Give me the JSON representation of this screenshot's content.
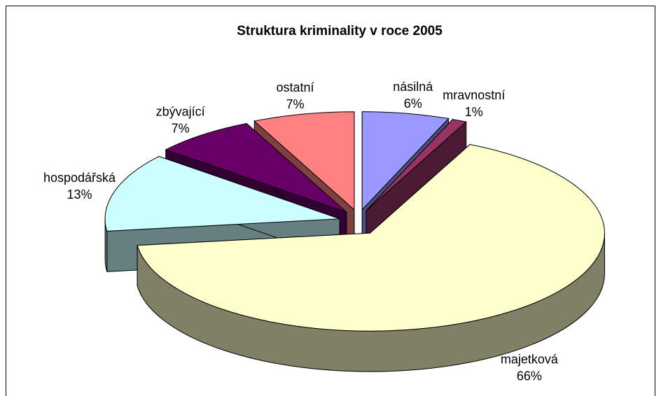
{
  "chart_data": {
    "type": "pie3d",
    "title": "Struktura kriminality v roce 2005",
    "categories": [
      "násilná",
      "mravnostní",
      "majetková",
      "hospodářská",
      "zbývající",
      "ostatní"
    ],
    "values": [
      6,
      1,
      66,
      13,
      7,
      7
    ],
    "value_labels": [
      "6%",
      "1%",
      "66%",
      "13%",
      "7%",
      "7%"
    ],
    "colors": [
      "#9999ff",
      "#993366",
      "#ffffcc",
      "#ccffff",
      "#660066",
      "#ff8080"
    ]
  }
}
